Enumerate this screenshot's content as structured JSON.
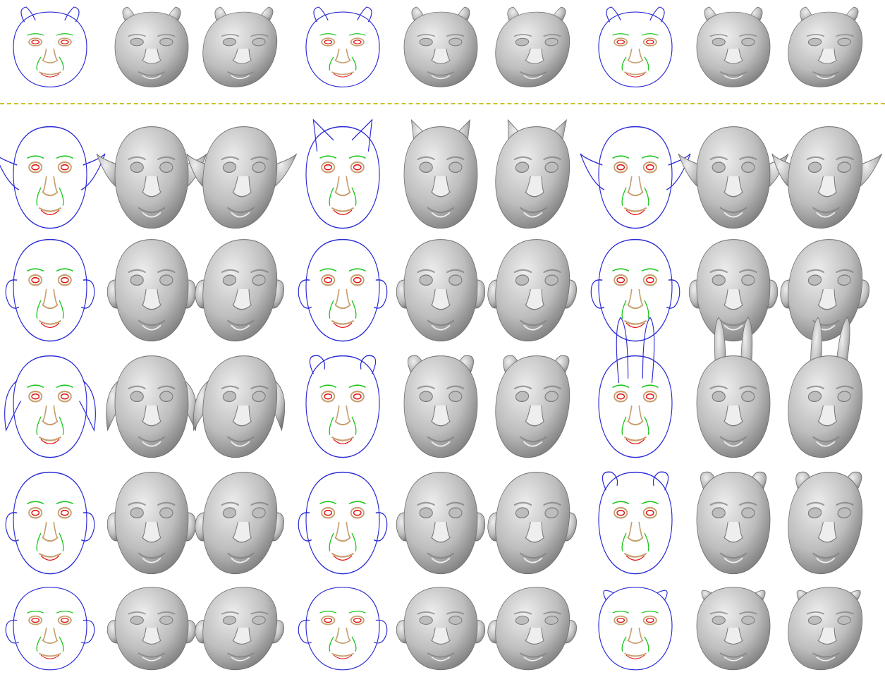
{
  "figure": {
    "background": "#ffffff",
    "divider_color": "#c9c12a",
    "sketch_colors": {
      "outline": "#2b2bd6",
      "ridge": "#19c619",
      "valley": "#e01212",
      "detail": "#c8a070"
    },
    "render_colors": {
      "light": "#eeeeee",
      "mid": "#bdbdbd",
      "dark": "#7a7a7a",
      "stroke": "#6d6d6d"
    },
    "rows": [
      {
        "id": "example-row",
        "groups": [
          {
            "character": "bull",
            "ears": "horn-round"
          },
          {
            "character": "pig-cow",
            "ears": "horn-round"
          },
          {
            "character": "ox",
            "ears": "horn-round"
          }
        ]
      },
      {
        "id": "row-1",
        "groups": [
          {
            "character": "elf-man",
            "ears": "pointed-side"
          },
          {
            "character": "cat",
            "ears": "cat"
          },
          {
            "character": "goblin",
            "ears": "pointed-side"
          }
        ]
      },
      {
        "id": "row-2",
        "groups": [
          {
            "character": "old-man",
            "ears": "side-round"
          },
          {
            "character": "bald-man",
            "ears": "side-round"
          },
          {
            "character": "grinning-man",
            "ears": "side-round"
          }
        ]
      },
      {
        "id": "row-3",
        "groups": [
          {
            "character": "dog",
            "ears": "dog"
          },
          {
            "character": "bear",
            "ears": "bear"
          },
          {
            "character": "rabbit",
            "ears": "rabbit"
          }
        ]
      },
      {
        "id": "row-4",
        "groups": [
          {
            "character": "chimp",
            "ears": "side-round"
          },
          {
            "character": "alien",
            "ears": "side-round"
          },
          {
            "character": "hippo-bear",
            "ears": "bear"
          }
        ]
      },
      {
        "id": "row-5",
        "groups": [
          {
            "character": "monkey",
            "ears": "side-round"
          },
          {
            "character": "otter",
            "ears": "side-round"
          },
          {
            "character": "pig",
            "ears": "pig"
          }
        ]
      }
    ]
  }
}
